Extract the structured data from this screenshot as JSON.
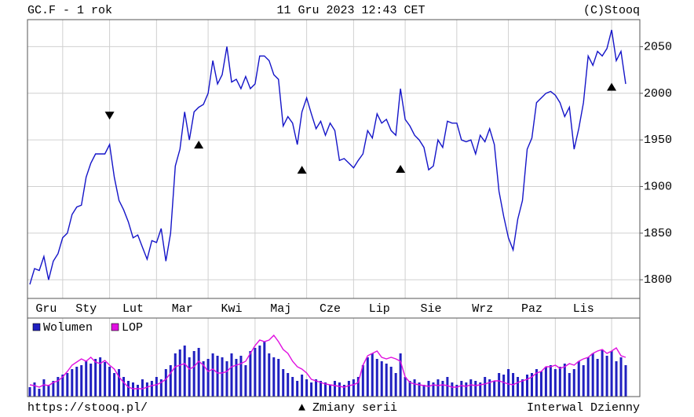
{
  "header": {
    "symbol": "GC.F - 1 rok",
    "date": "11 Gru 2023 12:43 CET",
    "copyright": "(C)Stooq"
  },
  "chart_data": [
    {
      "type": "line",
      "color": "#1414c8",
      "grid": true,
      "values": [
        1795,
        1812,
        1810,
        1825,
        1800,
        1820,
        1828,
        1845,
        1850,
        1870,
        1878,
        1880,
        1910,
        1925,
        1935,
        1935,
        1935,
        1945,
        1910,
        1885,
        1875,
        1862,
        1845,
        1848,
        1835,
        1822,
        1842,
        1840,
        1855,
        1820,
        1850,
        1922,
        1940,
        1980,
        1950,
        1980,
        1985,
        1988,
        2000,
        2035,
        2010,
        2020,
        2050,
        2012,
        2015,
        2005,
        2018,
        2005,
        2010,
        2040,
        2040,
        2035,
        2020,
        2015,
        1965,
        1975,
        1968,
        1945,
        1980,
        1995,
        1978,
        1962,
        1970,
        1955,
        1968,
        1960,
        1928,
        1930,
        1925,
        1920,
        1928,
        1935,
        1960,
        1952,
        1978,
        1968,
        1972,
        1960,
        1955,
        2005,
        1972,
        1965,
        1955,
        1950,
        1942,
        1918,
        1922,
        1950,
        1942,
        1970,
        1968,
        1968,
        1950,
        1948,
        1950,
        1935,
        1955,
        1948,
        1962,
        1945,
        1895,
        1868,
        1845,
        1832,
        1865,
        1885,
        1940,
        1952,
        1990,
        1995,
        2000,
        2002,
        1998,
        1990,
        1975,
        1985,
        1940,
        1962,
        1990,
        2040,
        2030,
        2045,
        2040,
        2048,
        2068,
        2035,
        2045,
        2010
      ],
      "ylim": [
        1780,
        2079
      ],
      "yticks": [
        1800,
        1850,
        1900,
        1950,
        2000,
        2050
      ],
      "xticks": [
        {
          "value": 0,
          "label": "Gru"
        },
        {
          "value": 7,
          "label": "Sty"
        },
        {
          "value": 17,
          "label": "Lut"
        },
        {
          "value": 27,
          "label": "Mar"
        },
        {
          "value": 38,
          "label": "Kwi"
        },
        {
          "value": 48,
          "label": "Maj"
        },
        {
          "value": 59,
          "label": "Cze"
        },
        {
          "value": 69,
          "label": "Lip"
        },
        {
          "value": 80,
          "label": "Sie"
        },
        {
          "value": 91,
          "label": "Wrz"
        },
        {
          "value": 102,
          "label": "Paz"
        },
        {
          "value": 112,
          "label": "Lis"
        },
        {
          "value": 124,
          "label": null
        }
      ],
      "series_changes": [
        {
          "index": 17,
          "value": 1976,
          "direction": "down"
        },
        {
          "index": 36,
          "value": 1945,
          "direction": "up"
        },
        {
          "index": 58,
          "value": 1918,
          "direction": "up"
        },
        {
          "index": 79,
          "value": 1919,
          "direction": "up"
        },
        {
          "index": 124,
          "value": 2007,
          "direction": "up"
        }
      ]
    },
    {
      "type": "bar",
      "ylim": [
        0,
        100
      ],
      "series": [
        {
          "name": "Wolumen",
          "color": "#2020c0",
          "values": [
            12,
            18,
            10,
            22,
            15,
            20,
            25,
            28,
            30,
            35,
            38,
            40,
            45,
            42,
            48,
            50,
            44,
            38,
            30,
            35,
            25,
            20,
            18,
            15,
            22,
            18,
            20,
            25,
            22,
            35,
            40,
            55,
            60,
            65,
            50,
            58,
            62,
            45,
            48,
            55,
            52,
            50,
            45,
            55,
            48,
            52,
            40,
            58,
            62,
            65,
            70,
            55,
            50,
            48,
            35,
            30,
            25,
            20,
            28,
            22,
            18,
            22,
            20,
            18,
            15,
            20,
            18,
            15,
            20,
            22,
            25,
            40,
            50,
            55,
            48,
            45,
            42,
            38,
            30,
            55,
            25,
            20,
            22,
            18,
            15,
            20,
            18,
            22,
            20,
            25,
            18,
            15,
            20,
            18,
            22,
            20,
            18,
            25,
            22,
            20,
            30,
            28,
            35,
            30,
            25,
            22,
            28,
            30,
            35,
            32,
            38,
            40,
            35,
            38,
            42,
            30,
            35,
            45,
            40,
            50,
            55,
            48,
            60,
            52,
            58,
            45,
            50,
            40
          ]
        },
        {
          "name": "LOP",
          "color": "#e010e0",
          "type": "line",
          "values": [
            15,
            14,
            12,
            15,
            14,
            18,
            20,
            25,
            32,
            40,
            44,
            48,
            45,
            50,
            44,
            42,
            46,
            40,
            35,
            25,
            18,
            12,
            10,
            10,
            10,
            12,
            14,
            15,
            18,
            22,
            30,
            38,
            40,
            42,
            35,
            38,
            45,
            40,
            32,
            35,
            30,
            30,
            32,
            38,
            40,
            42,
            45,
            55,
            65,
            72,
            70,
            72,
            78,
            70,
            60,
            55,
            45,
            38,
            35,
            30,
            22,
            20,
            18,
            16,
            15,
            14,
            13,
            12,
            14,
            15,
            18,
            40,
            52,
            55,
            58,
            50,
            48,
            50,
            48,
            45,
            25,
            18,
            16,
            15,
            14,
            13,
            15,
            14,
            15,
            14,
            12,
            12,
            14,
            13,
            15,
            14,
            15,
            16,
            18,
            20,
            20,
            18,
            16,
            15,
            18,
            20,
            22,
            25,
            30,
            32,
            38,
            38,
            40,
            36,
            38,
            42,
            40,
            45,
            48,
            50,
            55,
            58,
            60,
            55,
            58,
            62,
            52,
            50
          ]
        }
      ]
    }
  ],
  "footer": {
    "url": "https://stooq.pl/",
    "legend": "▲ Zmiany serii",
    "interval": "Interwal Dzienny"
  }
}
